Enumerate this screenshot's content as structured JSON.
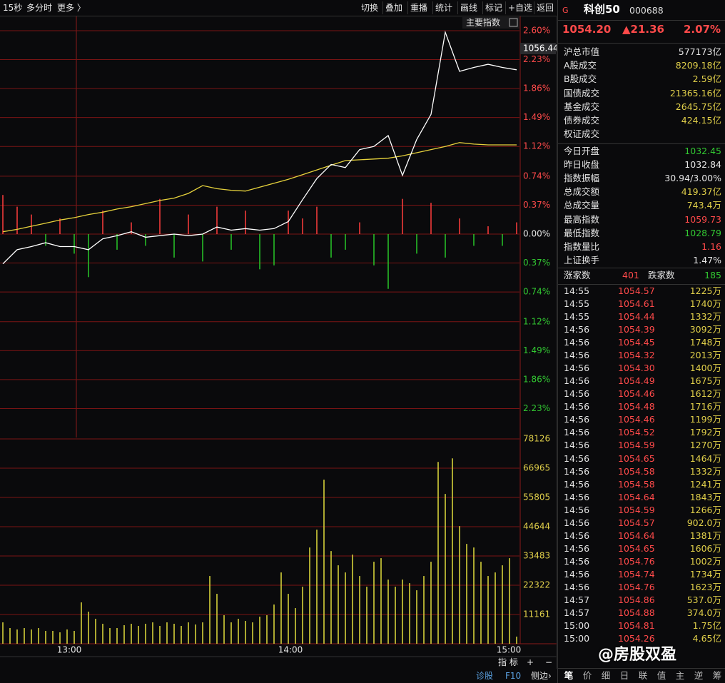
{
  "toolbar": {
    "left": [
      "15秒",
      "多分时",
      "更多 〉"
    ],
    "right": [
      "切换",
      "叠加",
      "重播",
      "统计",
      "画线",
      "标记",
      "+自选",
      "返回"
    ]
  },
  "quote": {
    "flag": "G",
    "name": "科创50",
    "code": "000688",
    "price": "1054.20",
    "change": "▲21.36",
    "pct": "2.07%"
  },
  "stats": [
    {
      "label": "沪总市值",
      "value": "577173亿",
      "color": "#e6e6e6"
    },
    {
      "label": "A股成交",
      "value": "8209.18亿",
      "color": "#e0cf4a"
    },
    {
      "label": "B股成交",
      "value": "2.59亿",
      "color": "#e0cf4a"
    },
    {
      "label": "国债成交",
      "value": "21365.16亿",
      "color": "#e0cf4a"
    },
    {
      "label": "基金成交",
      "value": "2645.75亿",
      "color": "#e0cf4a"
    },
    {
      "label": "债券成交",
      "value": "424.15亿",
      "color": "#e0cf4a"
    },
    {
      "label": "权证成交"
    }
  ],
  "stats2": [
    {
      "label": "今日开盘",
      "value": "1032.45",
      "color": "#32c832"
    },
    {
      "label": "昨日收盘",
      "value": "1032.84",
      "color": "#e6e6e6"
    },
    {
      "label": "指数振幅",
      "value": "30.94/3.00%",
      "color": "#e6e6e6"
    },
    {
      "label": "总成交额",
      "value": "419.37亿",
      "color": "#e0cf4a"
    },
    {
      "label": "总成交量",
      "value": "743.4万",
      "color": "#e0cf4a"
    },
    {
      "label": "最高指数",
      "value": "1059.73",
      "color": "#ff4a4a"
    },
    {
      "label": "最低指数",
      "value": "1028.79",
      "color": "#32c832"
    },
    {
      "label": "指数量比",
      "value": "1.16",
      "color": "#ff4a4a"
    },
    {
      "label": "上证换手",
      "value": "1.47%",
      "color": "#e6e6e6"
    }
  ],
  "breadth": {
    "up_label": "涨家数",
    "up": 401,
    "down_label": "跌家数",
    "down": 185
  },
  "trades": [
    [
      "14:55",
      "1054.57",
      "1225万"
    ],
    [
      "14:55",
      "1054.61",
      "1740万"
    ],
    [
      "14:55",
      "1054.44",
      "1332万"
    ],
    [
      "14:56",
      "1054.39",
      "3092万"
    ],
    [
      "14:56",
      "1054.45",
      "1748万"
    ],
    [
      "14:56",
      "1054.32",
      "2013万"
    ],
    [
      "14:56",
      "1054.30",
      "1400万"
    ],
    [
      "14:56",
      "1054.49",
      "1675万"
    ],
    [
      "14:56",
      "1054.46",
      "1612万"
    ],
    [
      "14:56",
      "1054.48",
      "1716万"
    ],
    [
      "14:56",
      "1054.46",
      "1199万"
    ],
    [
      "14:56",
      "1054.52",
      "1792万"
    ],
    [
      "14:56",
      "1054.59",
      "1270万"
    ],
    [
      "14:56",
      "1054.65",
      "1464万"
    ],
    [
      "14:56",
      "1054.58",
      "1332万"
    ],
    [
      "14:56",
      "1054.58",
      "1241万"
    ],
    [
      "14:56",
      "1054.64",
      "1843万"
    ],
    [
      "14:56",
      "1054.59",
      "1266万"
    ],
    [
      "14:56",
      "1054.57",
      "902.0万"
    ],
    [
      "14:56",
      "1054.64",
      "1381万"
    ],
    [
      "14:56",
      "1054.65",
      "1606万"
    ],
    [
      "14:56",
      "1054.76",
      "1002万"
    ],
    [
      "14:56",
      "1054.74",
      "1734万"
    ],
    [
      "14:56",
      "1054.76",
      "1623万"
    ],
    [
      "14:57",
      "1054.86",
      "537.0万"
    ],
    [
      "14:57",
      "1054.88",
      "374.0万"
    ],
    [
      "15:00",
      "1054.81",
      "1.75亿"
    ],
    [
      "15:00",
      "1054.26",
      "4.65亿"
    ]
  ],
  "chart_data": {
    "type": "line",
    "legend_label": "主要指数",
    "last_label": "1056.44",
    "x_labels": [
      "13:00",
      "14:00",
      "15:00"
    ],
    "series": [
      {
        "color": "#ffffff",
        "values": [
          -0.38,
          -0.2,
          -0.16,
          -0.11,
          -0.16,
          -0.16,
          -0.2,
          -0.06,
          -0.02,
          0.03,
          -0.04,
          -0.02,
          0.0,
          -0.02,
          0.0,
          0.09,
          0.05,
          0.07,
          0.05,
          0.07,
          0.16,
          0.44,
          0.71,
          0.89,
          0.85,
          1.08,
          1.12,
          1.26,
          0.75,
          1.21,
          1.53,
          2.58,
          2.08,
          2.13,
          2.17,
          2.13,
          2.1
        ]
      },
      {
        "color": "#e6d23c",
        "values": [
          0.03,
          0.06,
          0.1,
          0.14,
          0.18,
          0.21,
          0.25,
          0.28,
          0.32,
          0.35,
          0.39,
          0.43,
          0.46,
          0.52,
          0.62,
          0.58,
          0.56,
          0.55,
          0.6,
          0.65,
          0.7,
          0.76,
          0.82,
          0.88,
          0.94,
          0.95,
          0.96,
          0.97,
          1.0,
          1.04,
          1.08,
          1.12,
          1.17,
          1.15,
          1.14,
          1.14,
          1.14
        ]
      }
    ],
    "diff": {
      "up_color": "#ff3c3c",
      "down_color": "#28c828",
      "values": [
        0.5,
        0.35,
        0.25,
        -0.15,
        0.2,
        -0.25,
        -0.55,
        0.3,
        -0.2,
        0.15,
        -0.15,
        0.45,
        -0.3,
        0.25,
        -0.35,
        0.35,
        -0.2,
        0.3,
        -0.45,
        -0.4,
        0.3,
        0.2,
        0.35,
        -0.3,
        -0.2,
        0.15,
        -0.4,
        -0.7,
        0.45,
        -0.25,
        0.4,
        -0.3,
        0.2,
        -0.15,
        0.1,
        -0.15,
        0.15
      ]
    },
    "ylim": [
      -2.6,
      2.6
    ],
    "yticks": [
      {
        "value": 2.6,
        "label": "2.60%"
      },
      {
        "value": 2.23,
        "label": "2.23%"
      },
      {
        "value": 1.86,
        "label": "1.86%"
      },
      {
        "value": 1.49,
        "label": "1.49%"
      },
      {
        "value": 1.12,
        "label": "1.12%"
      },
      {
        "value": 0.74,
        "label": "0.74%"
      },
      {
        "value": 0.37,
        "label": "0.37%"
      },
      {
        "value": 0,
        "label": "0.00%"
      },
      {
        "value": -0.37,
        "label": "0.37%"
      },
      {
        "value": -0.74,
        "label": "0.74%"
      },
      {
        "value": -1.12,
        "label": "1.12%"
      },
      {
        "value": -1.49,
        "label": "1.49%"
      },
      {
        "value": -1.86,
        "label": "1.86%"
      },
      {
        "value": -2.23,
        "label": "2.23%"
      }
    ],
    "grid": true,
    "volume": {
      "color": "#d4d03a",
      "values": [
        8160,
        5984,
        5440,
        5984,
        5440,
        5984,
        4896,
        4896,
        4352,
        5440,
        4896,
        15776,
        12240,
        9520,
        7616,
        5984,
        5984,
        7072,
        7616,
        6800,
        7616,
        8160,
        6800,
        8160,
        7616,
        6800,
        8160,
        7344,
        8160,
        25840,
        19040,
        10880,
        8160,
        9520,
        8704,
        8160,
        10336,
        10880,
        14960,
        27200,
        19040,
        13600,
        21760,
        36720,
        43520,
        62560,
        35360,
        29920,
        27200,
        34000,
        25840,
        21760,
        31280,
        32640,
        24480,
        21760,
        24480,
        23120,
        20400,
        25840,
        31280,
        69360,
        57120,
        70720,
        44880,
        38080,
        36720,
        31280,
        25840,
        27200,
        29920,
        32640,
        2720
      ],
      "ylim": [
        0,
        78126
      ],
      "yticks": [
        78126,
        66965,
        55805,
        44644,
        33483,
        22322,
        11161
      ]
    }
  },
  "bottom": {
    "left": [
      "指 标",
      "+",
      "−"
    ],
    "left2": [
      "诊股",
      "F10",
      "侧边›"
    ],
    "tabs": [
      "笔",
      "价",
      "细",
      "日",
      "联",
      "值",
      "主",
      "逆",
      "筹"
    ]
  },
  "watermark": "@房股双盈"
}
